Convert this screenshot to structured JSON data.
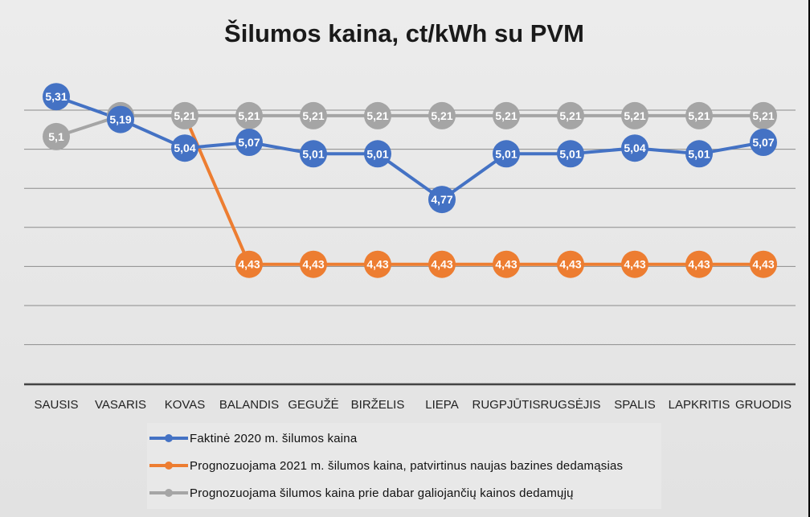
{
  "chart_data": {
    "type": "line",
    "title": "Šilumos kaina, ct/kWh su PVM",
    "categories": [
      "SAUSIS",
      "VASARIS",
      "KOVAS",
      "BALANDIS",
      "GEGUŽĖ",
      "BIRŽELIS",
      "LIEPA",
      "RUGPJŪTIS",
      "RUGSĖJIS",
      "SPALIS",
      "LAPKRITIS",
      "GRUODIS"
    ],
    "ylim": [
      3.8,
      5.45
    ],
    "grid": true,
    "legend_position": "bottom",
    "series": [
      {
        "name": "Faktinė 2020 m. šilumos kaina",
        "color": "#4472c4",
        "values": [
          5.31,
          5.19,
          5.04,
          5.07,
          5.01,
          5.01,
          4.77,
          5.01,
          5.01,
          5.04,
          5.01,
          5.07
        ],
        "labels": [
          "5,31",
          "5,19",
          "5,04",
          "5,07",
          "5,01",
          "5,01",
          "4,77",
          "5,01",
          "5,01",
          "5,04",
          "5,01",
          "5,07"
        ]
      },
      {
        "name": "Prognozuojama 2021 m. šilumos kaina, patvirtinus naujas bazines dedamąsias",
        "color": "#ed7d31",
        "values": [
          null,
          null,
          5.21,
          4.43,
          4.43,
          4.43,
          4.43,
          4.43,
          4.43,
          4.43,
          4.43,
          4.43
        ],
        "labels": [
          "",
          "",
          "",
          "4,43",
          "4,43",
          "4,43",
          "4,43",
          "4,43",
          "4,43",
          "4,43",
          "4,43",
          "4,43"
        ]
      },
      {
        "name": "Prognozuojama šilumos kaina prie dabar galiojančių kainos dedamųjų",
        "color": "#a5a5a5",
        "values": [
          5.1,
          5.21,
          5.21,
          5.21,
          5.21,
          5.21,
          5.21,
          5.21,
          5.21,
          5.21,
          5.21,
          5.21
        ],
        "labels": [
          "5,1",
          "5,21",
          "5,21",
          "5,21",
          "5,21",
          "5,21",
          "5,21",
          "5,21",
          "5,21",
          "5,21",
          "5,21",
          "5,21"
        ]
      }
    ]
  }
}
